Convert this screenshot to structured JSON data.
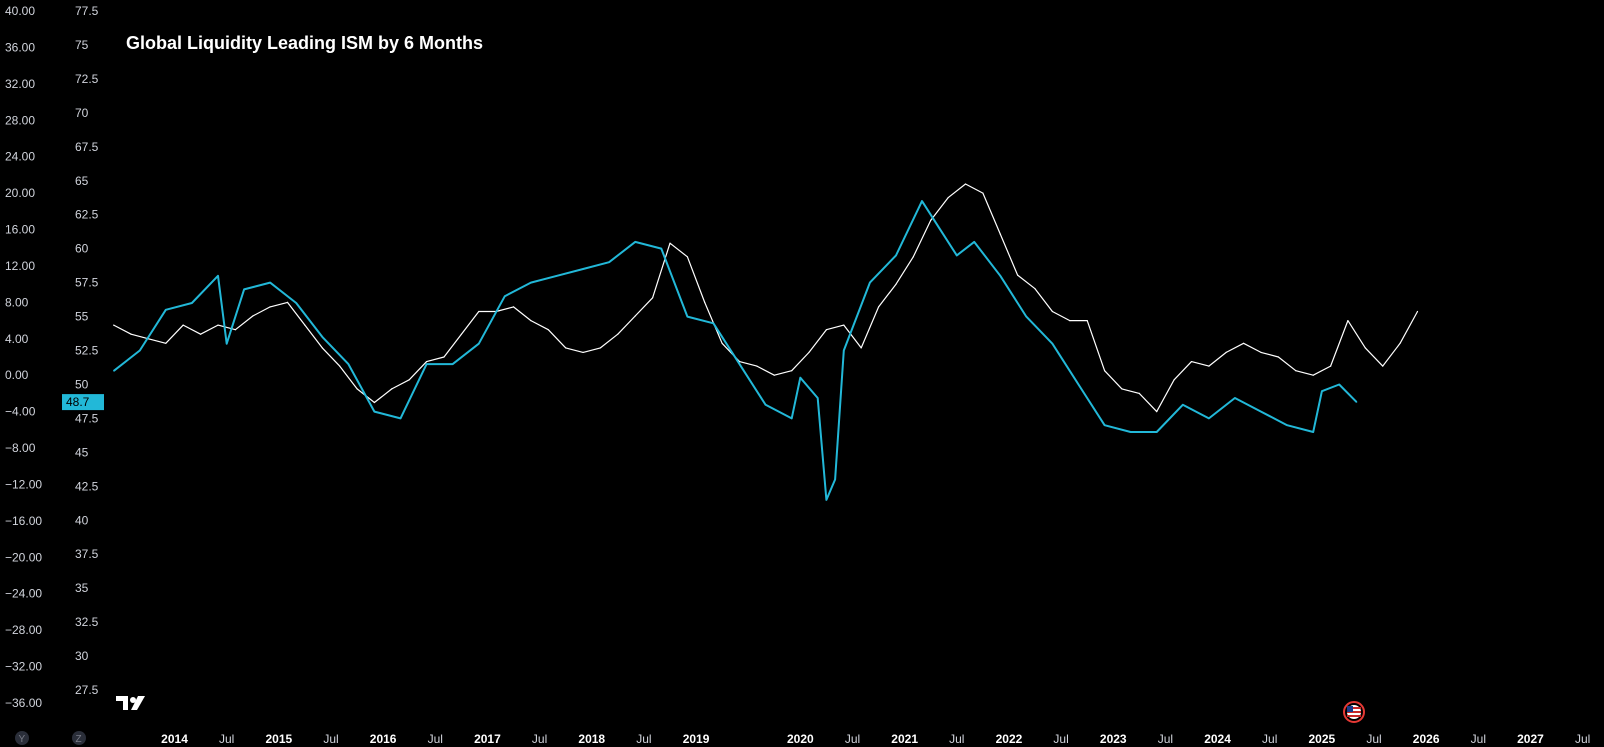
{
  "chart_data": {
    "type": "line",
    "title": "Global Liquidity Leading ISM by 6 Months",
    "left_axis_ticks": [
      "40.00",
      "36.00",
      "32.00",
      "28.00",
      "24.00",
      "20.00",
      "16.00",
      "12.00",
      "8.00",
      "4.00",
      "0.00",
      "−4.00",
      "−8.00",
      "−12.00",
      "−16.00",
      "−20.00",
      "−24.00",
      "−28.00",
      "−32.00",
      "−36.00"
    ],
    "left_axis_range": [
      -36,
      40
    ],
    "right_axis_ticks": [
      "77.5",
      "75",
      "72.5",
      "70",
      "67.5",
      "65",
      "62.5",
      "60",
      "57.5",
      "55",
      "52.5",
      "50",
      "47.5",
      "45",
      "42.5",
      "40",
      "37.5",
      "35",
      "32.5",
      "30",
      "27.5"
    ],
    "right_axis_range": [
      27.5,
      77.5
    ],
    "x_axis_ticks": [
      "2014",
      "Jul",
      "2015",
      "Jul",
      "2016",
      "Jul",
      "2017",
      "Jul",
      "2018",
      "Jul",
      "2019",
      "2020",
      "Jul",
      "2021",
      "Jul",
      "2022",
      "Jul",
      "2023",
      "Jul",
      "2024",
      "Jul",
      "2025",
      "Jul",
      "2026",
      "Jul",
      "2027",
      "Jul"
    ],
    "x_range": [
      "2013-05",
      "2027-09"
    ],
    "last_value_badge": "48.7",
    "series": [
      {
        "color": "#ffffff",
        "axis": "left",
        "x": [
          "2013-06",
          "2013-08",
          "2013-10",
          "2013-12",
          "2014-02",
          "2014-04",
          "2014-06",
          "2014-08",
          "2014-10",
          "2014-12",
          "2015-02",
          "2015-04",
          "2015-06",
          "2015-08",
          "2015-10",
          "2015-12",
          "2016-02",
          "2016-04",
          "2016-06",
          "2016-08",
          "2016-10",
          "2016-12",
          "2017-02",
          "2017-04",
          "2017-06",
          "2017-08",
          "2017-10",
          "2017-12",
          "2018-02",
          "2018-04",
          "2018-06",
          "2018-08",
          "2018-10",
          "2018-12",
          "2019-02",
          "2019-04",
          "2019-06",
          "2019-08",
          "2019-10",
          "2019-12",
          "2020-02",
          "2020-04",
          "2020-06",
          "2020-08",
          "2020-10",
          "2020-12",
          "2021-02",
          "2021-04",
          "2021-06",
          "2021-08",
          "2021-10",
          "2021-12",
          "2022-02",
          "2022-04",
          "2022-06",
          "2022-08",
          "2022-10",
          "2022-12",
          "2023-02",
          "2023-04",
          "2023-06",
          "2023-08",
          "2023-10",
          "2023-12",
          "2024-02",
          "2024-04",
          "2024-06",
          "2024-08",
          "2024-10",
          "2024-12",
          "2025-02",
          "2025-04",
          "2025-06",
          "2025-08",
          "2025-10",
          "2025-12"
        ],
        "values": [
          5.5,
          4.5,
          4.0,
          3.5,
          5.5,
          4.5,
          5.5,
          5.0,
          6.5,
          7.5,
          8.0,
          5.5,
          3.0,
          1.0,
          -1.5,
          -3.0,
          -1.5,
          -0.5,
          1.5,
          2.0,
          4.5,
          7.0,
          7.0,
          7.5,
          6.0,
          5.0,
          3.0,
          2.5,
          3.0,
          4.5,
          6.5,
          8.5,
          14.5,
          13.0,
          8.0,
          3.5,
          1.5,
          1.0,
          0.0,
          0.5,
          2.5,
          5.0,
          5.5,
          3.0,
          7.5,
          10.0,
          13.0,
          17.0,
          19.5,
          21.0,
          20.0,
          15.5,
          11.0,
          9.5,
          7.0,
          6.0,
          6.0,
          0.5,
          -1.5,
          -2.0,
          -4.0,
          -0.5,
          1.5,
          1.0,
          2.5,
          3.5,
          2.5,
          2.0,
          0.5,
          0.0,
          1.0,
          6.0,
          3.0,
          1.0,
          3.5,
          7.0
        ]
      },
      {
        "color": "#22b8d8",
        "axis": "right",
        "x": [
          "2013-06",
          "2013-09",
          "2013-12",
          "2014-03",
          "2014-06",
          "2014-07",
          "2014-09",
          "2014-12",
          "2015-03",
          "2015-06",
          "2015-09",
          "2015-12",
          "2016-03",
          "2016-06",
          "2016-09",
          "2016-12",
          "2017-03",
          "2017-06",
          "2017-09",
          "2017-12",
          "2018-03",
          "2018-06",
          "2018-09",
          "2018-12",
          "2019-03",
          "2019-06",
          "2019-09",
          "2019-12",
          "2020-01",
          "2020-03",
          "2020-04",
          "2020-05",
          "2020-06",
          "2020-09",
          "2020-12",
          "2021-03",
          "2021-05",
          "2021-07",
          "2021-09",
          "2021-12",
          "2022-03",
          "2022-06",
          "2022-09",
          "2022-12",
          "2023-03",
          "2023-06",
          "2023-09",
          "2023-12",
          "2024-03",
          "2024-06",
          "2024-09",
          "2024-12",
          "2025-01",
          "2025-03",
          "2025-05"
        ],
        "values": [
          51.0,
          52.5,
          55.5,
          56.0,
          58.0,
          53.0,
          57.0,
          57.5,
          56.0,
          53.5,
          51.5,
          48.0,
          47.5,
          51.5,
          51.5,
          53.0,
          56.5,
          57.5,
          58.0,
          58.5,
          59.0,
          60.5,
          60.0,
          55.0,
          54.5,
          51.5,
          48.5,
          47.5,
          50.5,
          49.0,
          41.5,
          43.0,
          52.5,
          57.5,
          59.5,
          63.5,
          61.5,
          59.5,
          60.5,
          58.0,
          55.0,
          53.0,
          50.0,
          47.0,
          46.5,
          46.5,
          48.5,
          47.5,
          49.0,
          48.0,
          47.0,
          46.5,
          49.5,
          50.0,
          48.7
        ]
      }
    ]
  },
  "branding": {
    "logo": "TV"
  },
  "controls": {
    "y_scale_label": "Y",
    "z_scale_label": "Z"
  },
  "icons": {
    "flag": "us-flag-icon"
  }
}
